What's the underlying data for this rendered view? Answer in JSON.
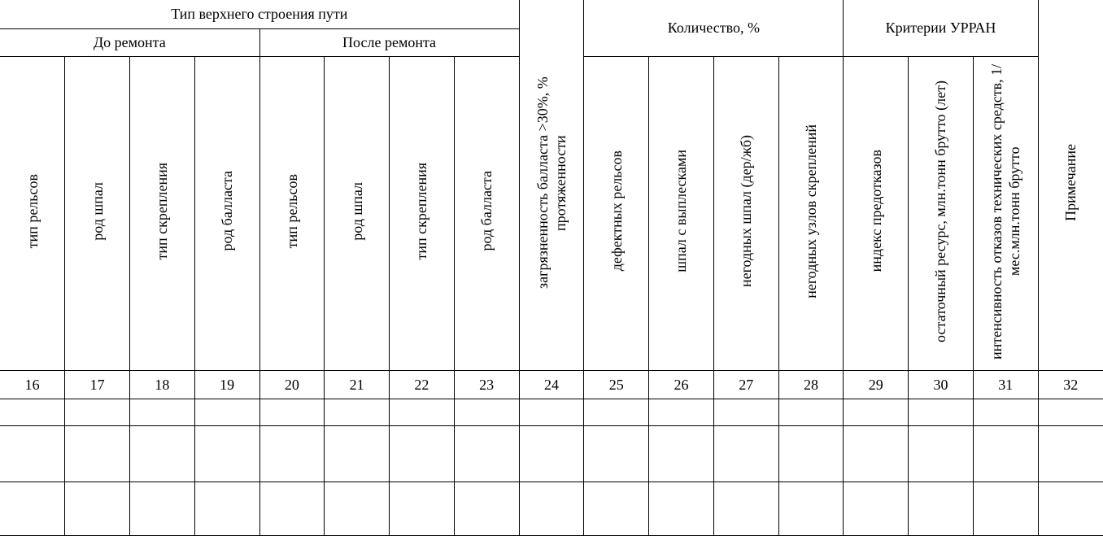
{
  "header": {
    "title": "Тип верхнего строения пути",
    "before": "До ремонта",
    "after": "После ремонта",
    "contamination": "загрязненность балласта >30%, % протяженности",
    "quantity": "Количество, %",
    "criteria": "Критерии УРРАН",
    "note": "Примечание"
  },
  "columns": {
    "before": [
      "тип рельсов",
      "род шпал",
      "тип скрепления",
      "род балласта"
    ],
    "after": [
      "тип рельсов",
      "род шпал",
      "тип скрепления",
      "род балласта"
    ],
    "quantity": [
      "дефектных рельсов",
      "шпал с выплесками",
      "негодных шпал (дер/жб)",
      "негодных узлов скреплений"
    ],
    "criteria": [
      "индекс предотказов",
      "остаточный ресурс, млн.тонн брутто (лет)",
      "интенсивность отказов технических средств, 1/мес.млн.тонн брутто"
    ]
  },
  "numbers": [
    16,
    17,
    18,
    19,
    20,
    21,
    22,
    23,
    24,
    25,
    26,
    27,
    28,
    29,
    30,
    31,
    32
  ]
}
